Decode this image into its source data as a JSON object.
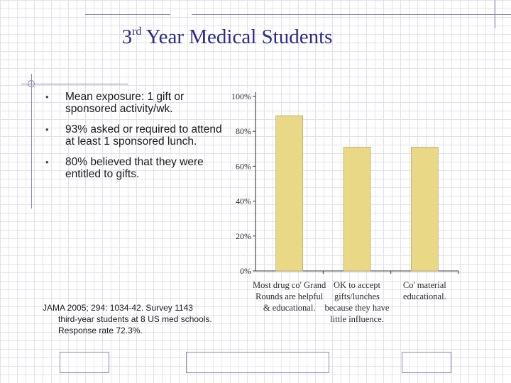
{
  "slide": {
    "title_prefix": "3",
    "title_sup": "rd",
    "title_rest": " Year Medical Students"
  },
  "bullets": [
    "Mean exposure: 1 gift or sponsored activity/wk.",
    "93% asked or required to attend at least 1 sponsored lunch.",
    "80% believed that they were entitled to gifts."
  ],
  "note": {
    "line1": "JAMA 2005; 294: 1034-42. Survey 1143",
    "line2": "third-year students at 8 US med schools. Response rate 72.3%."
  },
  "chart_data": {
    "type": "bar",
    "categories": [
      [
        "Most drug co' Grand",
        "Rounds are helpful",
        "& educational."
      ],
      [
        "OK to accept",
        "gifts/lunches",
        "because they have",
        "little influence."
      ],
      [
        "Co' material",
        "educational."
      ]
    ],
    "values": [
      89,
      71,
      71
    ],
    "ylim": [
      0,
      100
    ],
    "yticks": [
      0,
      20,
      40,
      60,
      80,
      100
    ],
    "ytick_labels": [
      "0%",
      "20%",
      "40%",
      "60%",
      "80%",
      "100%"
    ],
    "bar_color": "#e9d886",
    "bar_border": "#a89a55",
    "grid": false
  }
}
